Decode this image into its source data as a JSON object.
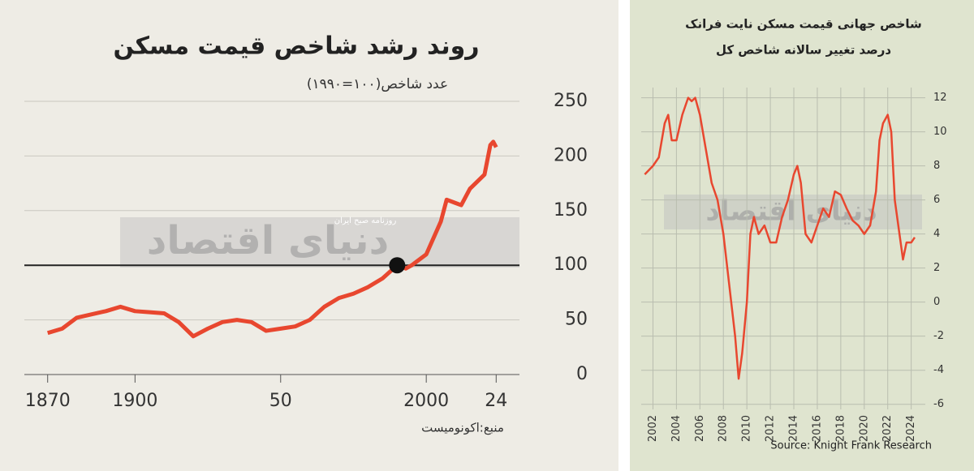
{
  "chart_data": [
    {
      "type": "line",
      "title": "روند رشد شاخص قیمت مسکن",
      "subtitle": "عدد شاخص(۱۰۰=۱۹۹۰)",
      "source": "منبع:اکونومیست",
      "watermark": "دنیای اقتصاد",
      "watermark_sub": "روزنامه صبح ایران",
      "x": [
        1870,
        1875,
        1880,
        1885,
        1890,
        1895,
        1900,
        1905,
        1910,
        1915,
        1920,
        1925,
        1930,
        1935,
        1940,
        1945,
        1950,
        1955,
        1960,
        1965,
        1970,
        1975,
        1980,
        1985,
        1990,
        1993,
        1995,
        2000,
        2005,
        2007,
        2010,
        2012,
        2015,
        2020,
        2022,
        2023,
        2024
      ],
      "series": [
        {
          "color": "#e8472f",
          "values": [
            38,
            42,
            52,
            55,
            58,
            62,
            58,
            57,
            56,
            48,
            35,
            42,
            48,
            50,
            48,
            40,
            42,
            44,
            50,
            62,
            70,
            74,
            80,
            88,
            100,
            97,
            100,
            110,
            140,
            160,
            157,
            155,
            170,
            183,
            210,
            213,
            208
          ]
        }
      ],
      "highlight": {
        "x": 1990,
        "y": 100
      },
      "hline": 100,
      "xlim": [
        1862,
        2032
      ],
      "ylim": [
        0,
        250
      ],
      "xticks": [
        1870,
        1900,
        {
          "value": 1950,
          "label": "50"
        },
        2000,
        {
          "value": 2024,
          "label": "24"
        }
      ],
      "yticks": [
        0,
        50,
        100,
        150,
        200,
        250
      ],
      "grid": true,
      "y_axis_side": "right"
    },
    {
      "type": "line",
      "title": "شاخص جهانی قیمت مسکن نایت فرانک",
      "subtitle": "درصد تغییر سالانه شاخص کل",
      "source": "Source: Knight Frank Research",
      "watermark": "دنیای اقتصاد",
      "x": [
        2001.3,
        2002,
        2002.5,
        2003,
        2003.3,
        2003.6,
        2004,
        2004.5,
        2005,
        2005.3,
        2005.6,
        2006,
        2006.5,
        2007,
        2007.5,
        2008,
        2008.5,
        2009,
        2009.3,
        2009.6,
        2010,
        2010.3,
        2010.6,
        2011,
        2011.5,
        2012,
        2012.5,
        2013,
        2013.5,
        2014,
        2014.3,
        2014.6,
        2015,
        2015.5,
        2016,
        2016.5,
        2017,
        2017.5,
        2018,
        2018.5,
        2019,
        2019.5,
        2020,
        2020.5,
        2021,
        2021.3,
        2021.6,
        2022,
        2022.3,
        2022.6,
        2023,
        2023.3,
        2023.6,
        2024,
        2024.3
      ],
      "series": [
        {
          "color": "#e8472f",
          "values": [
            7.5,
            8,
            8.5,
            10.5,
            11,
            9.5,
            9.5,
            11,
            12,
            11.8,
            12,
            11,
            9,
            7,
            6,
            4,
            1,
            -2,
            -4.5,
            -3,
            0,
            4,
            5,
            4,
            4.5,
            3.5,
            3.5,
            5,
            6,
            7.5,
            8,
            7,
            4,
            3.5,
            4.5,
            5.5,
            5,
            6.5,
            6.3,
            5.5,
            4.8,
            4.5,
            4,
            4.5,
            6.5,
            9.5,
            10.5,
            11,
            10,
            6,
            4,
            2.5,
            3.5,
            3.5,
            3.8
          ]
        }
      ],
      "xlim": [
        2001,
        2025.2
      ],
      "ylim": [
        -6.3,
        12.6
      ],
      "xticks": [
        2002,
        2004,
        2006,
        2008,
        2010,
        2012,
        2014,
        2016,
        2018,
        2020,
        2022,
        2024
      ],
      "yticks": [
        -6,
        -4,
        -2,
        0,
        2,
        4,
        6,
        8,
        10,
        12
      ],
      "grid": true,
      "y_axis_side": "right"
    }
  ]
}
